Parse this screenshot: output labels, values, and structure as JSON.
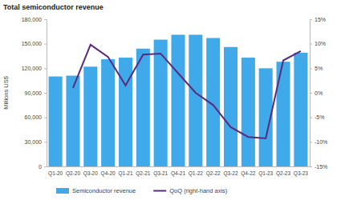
{
  "chart_data": {
    "type": "bar",
    "title": "Total semiconductor revenue",
    "y_label": "Millions US$",
    "categories": [
      "Q1-20",
      "Q2-20",
      "Q3-20",
      "Q4-20",
      "Q1-21",
      "Q2-21",
      "Q3-21",
      "Q4-21",
      "Q1-22",
      "Q2-22",
      "Q3-22",
      "Q4-22",
      "Q1-23",
      "Q2-23",
      "Q3-23"
    ],
    "series": [
      {
        "name": "Semiconductor revenue",
        "type": "bar",
        "color": "#3fa9ea",
        "values": [
          110000,
          111000,
          122000,
          131000,
          133000,
          144000,
          155000,
          161000,
          161000,
          157000,
          146000,
          133000,
          120000,
          128000,
          139000
        ]
      },
      {
        "name": "QoQ (right-hand axis)",
        "type": "line",
        "color": "#5a2b7c",
        "axis": "y2",
        "values": [
          null,
          1,
          9.8,
          7.3,
          1.5,
          7.8,
          8,
          4,
          0,
          -2.5,
          -7,
          -9,
          -9.3,
          6.6,
          8.5
        ]
      }
    ],
    "ylim": [
      0,
      180000
    ],
    "yticks": [
      0,
      {
        "value": 30000,
        "label": "30,000"
      },
      {
        "value": 60000,
        "label": "60,000"
      },
      {
        "value": 90000,
        "label": "90,000"
      },
      {
        "value": 120000,
        "label": "120,000"
      },
      {
        "value": 150000,
        "label": "150,000"
      },
      {
        "value": 180000,
        "label": "180,000"
      }
    ],
    "y2lim": [
      -15,
      15
    ],
    "y2ticks": [
      {
        "value": -15,
        "label": "-15%"
      },
      {
        "value": -10,
        "label": "-10%"
      },
      {
        "value": -5,
        "label": "-5%"
      },
      {
        "value": 0,
        "label": "0%"
      },
      {
        "value": 5,
        "label": "5%"
      },
      {
        "value": 10,
        "label": "10%"
      },
      {
        "value": 15,
        "label": "15%"
      }
    ],
    "grid": false,
    "legend": "bottom"
  }
}
